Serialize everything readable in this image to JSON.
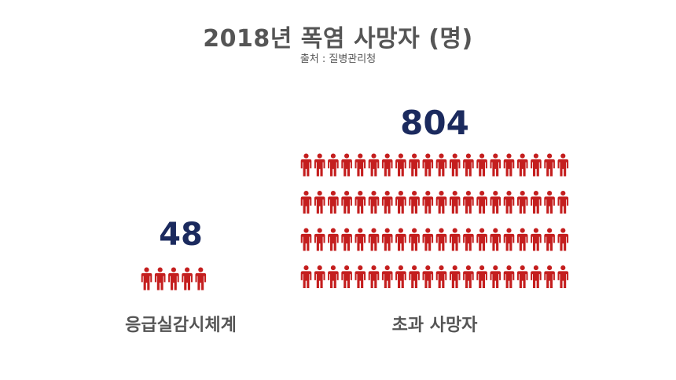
{
  "title": "2018년 폭염 사망자 (명)",
  "source": "출처 : 질병관리청",
  "chart_data": {
    "type": "bar",
    "title": "2018년 폭염 사망자 (명)",
    "categories": [
      "응급실감시체계",
      "초과 사망자"
    ],
    "values": [
      48,
      804
    ],
    "value_labels": [
      "48",
      "804"
    ],
    "unit_note": "pictograph: each person icon represents a share of the value",
    "icons": [
      5,
      80
    ],
    "icon_shape": "person-icon",
    "colors": {
      "icon": "#c41e1e",
      "value": "#1b2a5e",
      "text": "#555555"
    }
  }
}
